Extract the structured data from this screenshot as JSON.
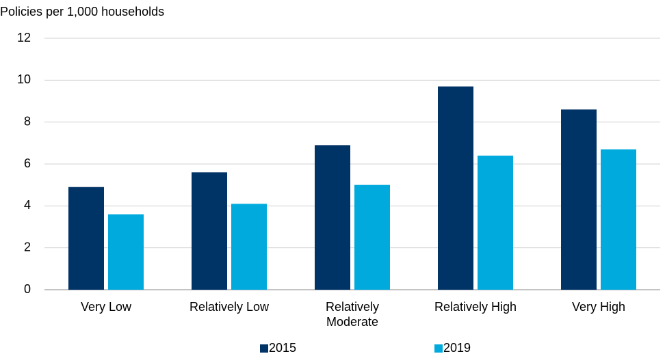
{
  "chart_data": {
    "type": "bar",
    "y_axis_label": "Policies per 1,000 households",
    "categories": [
      "Very Low",
      "Relatively Low",
      "Relatively Moderate",
      "Relatively High",
      "Very High"
    ],
    "series": [
      {
        "name": "2015",
        "color": "#003366",
        "values": [
          4.9,
          5.6,
          6.9,
          9.7,
          8.6
        ]
      },
      {
        "name": "2019",
        "color": "#00aadd",
        "values": [
          3.6,
          4.1,
          5.0,
          6.4,
          6.7
        ]
      }
    ],
    "ylim": [
      0,
      12
    ],
    "yticks": [
      0,
      2,
      4,
      6,
      8,
      10,
      12
    ],
    "grid": true,
    "legend": "bottom"
  }
}
